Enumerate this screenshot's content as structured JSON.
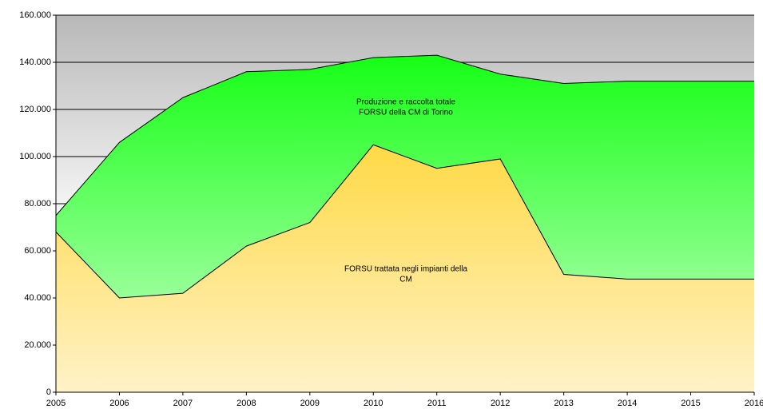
{
  "chart_data": {
    "type": "area",
    "x": [
      2005,
      2006,
      2007,
      2008,
      2009,
      2010,
      2011,
      2012,
      2013,
      2014,
      2015,
      2016
    ],
    "series": [
      {
        "name": "Produzione e raccolta totale FORSU della CM di Torino",
        "color": "#00ff00",
        "color_bottom": "#ccffcc",
        "values": [
          75000,
          106000,
          125000,
          136000,
          137000,
          142000,
          143000,
          135000,
          131000,
          132000,
          132000,
          132000
        ]
      },
      {
        "name": "FORSU trattata negli impianti della CM",
        "color": "#ffcc00",
        "color_bottom": "#fff2c8",
        "values": [
          68000,
          40000,
          42000,
          62000,
          72000,
          105000,
          95000,
          99000,
          50000,
          48000,
          48000,
          48000
        ]
      }
    ],
    "annotations": [
      {
        "lines": [
          "Produzione e raccolta totale",
          "FORSU della CM di Torino"
        ]
      },
      {
        "lines": [
          "FORSU trattata negli impianti della",
          "CM"
        ]
      }
    ],
    "xlim": [
      2005,
      2016
    ],
    "xticks": [
      2005,
      2006,
      2007,
      2008,
      2009,
      2010,
      2011,
      2012,
      2013,
      2014,
      2015,
      2016
    ],
    "ylim": [
      0,
      160000
    ],
    "yticks": [
      0,
      {
        "value": 20000,
        "label": "20.000"
      },
      {
        "value": 40000,
        "label": "40.000"
      },
      {
        "value": 60000,
        "label": "60.000"
      },
      {
        "value": 80000,
        "label": "80.000"
      },
      {
        "value": 100000,
        "label": "100.000"
      },
      {
        "value": 120000,
        "label": "120.000"
      },
      {
        "value": 140000,
        "label": "140.000"
      },
      {
        "value": 160000,
        "label": "160.000"
      }
    ],
    "grid": true
  }
}
